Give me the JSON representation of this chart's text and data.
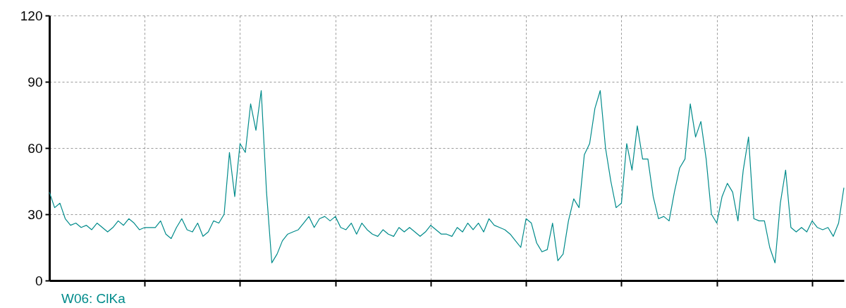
{
  "chart_data": {
    "type": "line",
    "categories": [
      null,
      null,
      null,
      null,
      null,
      null,
      null,
      null,
      null,
      null,
      null,
      null,
      null,
      null,
      null,
      null,
      null,
      null,
      null,
      null,
      null,
      null,
      null,
      null,
      null,
      null,
      null,
      null,
      null,
      null,
      null,
      null,
      null,
      null,
      null,
      null,
      null,
      null,
      null,
      null,
      null,
      null,
      null,
      null,
      null,
      null,
      null,
      null,
      null,
      null,
      null,
      null,
      null,
      null,
      null,
      null,
      null,
      null,
      null,
      null,
      null,
      null,
      null,
      null,
      null,
      null,
      null,
      null,
      null,
      null,
      null,
      null,
      null,
      null,
      null,
      null,
      null,
      null,
      null,
      null,
      null,
      null,
      null,
      null,
      null,
      null,
      null,
      null,
      null,
      null,
      null,
      null,
      null,
      null,
      null,
      null,
      null,
      null,
      null,
      null,
      null,
      null,
      null,
      null,
      null,
      null,
      null,
      null,
      null,
      null,
      null,
      null,
      null,
      null,
      null,
      null,
      null,
      null,
      null,
      null,
      null,
      null,
      null,
      null,
      null,
      null,
      null,
      null,
      null,
      null,
      null,
      null,
      null,
      null,
      null,
      null,
      null,
      null,
      null,
      null,
      null,
      null,
      null,
      null,
      null,
      null,
      null,
      null,
      null,
      null,
      null
    ],
    "series": [
      {
        "name": "W06: ClKa",
        "color": "#008b8b",
        "values": [
          40,
          33,
          35,
          28,
          25,
          26,
          24,
          25,
          23,
          26,
          24,
          22,
          24,
          27,
          25,
          28,
          26,
          23,
          24,
          24,
          24,
          27,
          21,
          19,
          24,
          28,
          23,
          22,
          26,
          20,
          22,
          27,
          26,
          30,
          58,
          38,
          62,
          58,
          80,
          68,
          86,
          40,
          8,
          12,
          18,
          21,
          22,
          23,
          26,
          29,
          24,
          28,
          29,
          27,
          29,
          24,
          23,
          26,
          21,
          26,
          23,
          21,
          20,
          23,
          21,
          20,
          24,
          22,
          24,
          22,
          20,
          22,
          25,
          23,
          21,
          21,
          20,
          24,
          22,
          26,
          23,
          26,
          22,
          28,
          25,
          24,
          23,
          21,
          18,
          15,
          28,
          26,
          17,
          13,
          14,
          26,
          9,
          12,
          27,
          37,
          33,
          57,
          62,
          78,
          86,
          60,
          45,
          33,
          35,
          62,
          50,
          70,
          55,
          55,
          38,
          28,
          29,
          27,
          40,
          51,
          55,
          80,
          65,
          72,
          55,
          30,
          26,
          38,
          44,
          40,
          27,
          50,
          65,
          28,
          27,
          27,
          15,
          8,
          35,
          50,
          24,
          22,
          24,
          22,
          27,
          24,
          23,
          24,
          20,
          26,
          42
        ]
      }
    ],
    "ylim": [
      0,
      120
    ],
    "yticks": [
      0,
      30,
      60,
      90,
      120
    ],
    "grid": true,
    "legend": "bottom left"
  }
}
